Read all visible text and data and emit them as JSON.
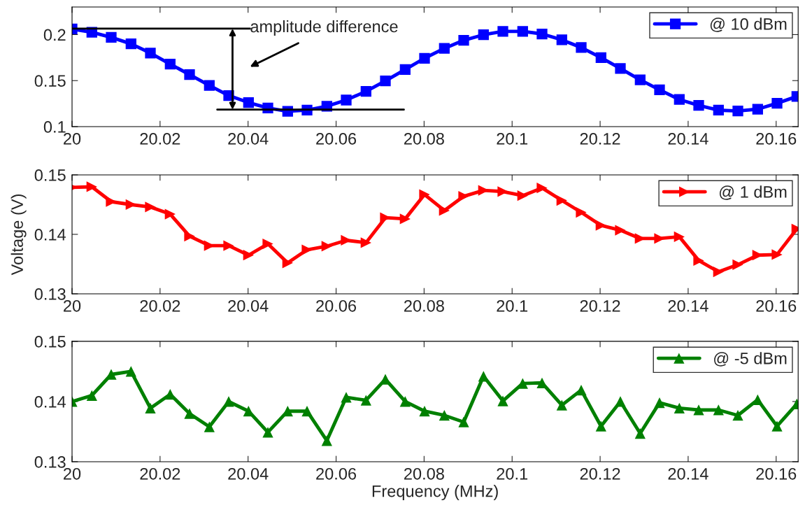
{
  "chart_data": [
    {
      "type": "line",
      "x": [
        20,
        20.0045,
        20.0089,
        20.0134,
        20.0178,
        20.0223,
        20.0267,
        20.0312,
        20.0356,
        20.0401,
        20.0445,
        20.049,
        20.0534,
        20.0579,
        20.0623,
        20.0668,
        20.0712,
        20.0757,
        20.0801,
        20.0846,
        20.089,
        20.0935,
        20.0979,
        20.1024,
        20.1068,
        20.1113,
        20.1157,
        20.1202,
        20.1246,
        20.1291,
        20.1335,
        20.138,
        20.1424,
        20.1469,
        20.1513,
        20.1558,
        20.1602,
        20.1647
      ],
      "series": [
        {
          "name": "@ 10 dBm",
          "color": "#0000ff",
          "marker": "square",
          "values": [
            0.2061,
            0.2025,
            0.197,
            0.19,
            0.18,
            0.168,
            0.1565,
            0.1447,
            0.1338,
            0.1262,
            0.1202,
            0.1167,
            0.118,
            0.1221,
            0.1289,
            0.1383,
            0.1497,
            0.162,
            0.1743,
            0.185,
            0.1938,
            0.1998,
            0.2035,
            0.2035,
            0.2007,
            0.1943,
            0.186,
            0.175,
            0.1632,
            0.1508,
            0.14,
            0.1295,
            0.1231,
            0.1179,
            0.117,
            0.119,
            0.1254,
            0.1328
          ]
        }
      ],
      "ref_lines": [
        {
          "axis": "y",
          "value": 0.2065,
          "label": "amplitude difference"
        },
        {
          "axis": "y",
          "value": 0.1185
        }
      ],
      "xlim": [
        20,
        20.165
      ],
      "xticks": [
        20,
        20.02,
        20.04,
        20.06,
        20.08,
        20.1,
        20.12,
        20.14,
        20.16
      ],
      "ylim": [
        0.1,
        0.23
      ],
      "yticks": [
        0.1,
        0.15,
        0.2
      ],
      "legend": "top right",
      "line_style": "solid",
      "grid": false
    },
    {
      "type": "line",
      "x": [
        20,
        20.0045,
        20.0089,
        20.0134,
        20.0178,
        20.0223,
        20.0267,
        20.0312,
        20.0356,
        20.0401,
        20.0445,
        20.049,
        20.0534,
        20.0579,
        20.0623,
        20.0668,
        20.0712,
        20.0757,
        20.0801,
        20.0846,
        20.089,
        20.0935,
        20.0979,
        20.1024,
        20.1068,
        20.1113,
        20.1157,
        20.1202,
        20.1246,
        20.1291,
        20.1335,
        20.138,
        20.1424,
        20.1469,
        20.1513,
        20.1558,
        20.1602,
        20.1647
      ],
      "series": [
        {
          "name": "@ 1 dBm",
          "color": "#ff0000",
          "marker": "triangle_right",
          "values": [
            0.1479,
            0.148,
            0.1455,
            0.145,
            0.1446,
            0.1434,
            0.1397,
            0.1381,
            0.1381,
            0.1365,
            0.1384,
            0.1352,
            0.1374,
            0.138,
            0.139,
            0.1386,
            0.1428,
            0.1426,
            0.1467,
            0.144,
            0.1464,
            0.1474,
            0.1472,
            0.1465,
            0.1478,
            0.1457,
            0.1437,
            0.1415,
            0.1407,
            0.1393,
            0.1393,
            0.1396,
            0.1356,
            0.1337,
            0.1349,
            0.1365,
            0.1366,
            0.1409
          ]
        }
      ],
      "ylabel": "Voltage (V)",
      "xlim": [
        20,
        20.165
      ],
      "xticks": [
        20,
        20.02,
        20.04,
        20.06,
        20.08,
        20.1,
        20.12,
        20.14,
        20.16
      ],
      "ylim": [
        0.13,
        0.15
      ],
      "yticks": [
        0.13,
        0.14,
        0.15
      ],
      "legend": "top right",
      "line_style": "solid",
      "grid": false
    },
    {
      "type": "line",
      "x": [
        20,
        20.0045,
        20.0089,
        20.0134,
        20.0178,
        20.0223,
        20.0267,
        20.0312,
        20.0356,
        20.0401,
        20.0445,
        20.049,
        20.0534,
        20.0579,
        20.0623,
        20.0668,
        20.0712,
        20.0757,
        20.0801,
        20.0846,
        20.089,
        20.0935,
        20.0979,
        20.1024,
        20.1068,
        20.1113,
        20.1157,
        20.1202,
        20.1246,
        20.1291,
        20.1335,
        20.138,
        20.1424,
        20.1469,
        20.1513,
        20.1558,
        20.1602,
        20.1647
      ],
      "series": [
        {
          "name": "@ -5 dBm",
          "color": "#008000",
          "marker": "triangle",
          "values": [
            0.14,
            0.141,
            0.1445,
            0.145,
            0.1389,
            0.1412,
            0.138,
            0.1358,
            0.14,
            0.1384,
            0.1349,
            0.1384,
            0.1384,
            0.1335,
            0.1407,
            0.1402,
            0.1437,
            0.14,
            0.1384,
            0.1377,
            0.1366,
            0.1442,
            0.1401,
            0.143,
            0.1431,
            0.1394,
            0.1419,
            0.1359,
            0.14,
            0.1347,
            0.1398,
            0.1389,
            0.1386,
            0.1386,
            0.1377,
            0.1403,
            0.1359,
            0.1396
          ]
        }
      ],
      "xlabel": "Frequency (MHz)",
      "xlim": [
        20,
        20.165
      ],
      "xticks": [
        20,
        20.02,
        20.04,
        20.06,
        20.08,
        20.1,
        20.12,
        20.14,
        20.16
      ],
      "ylim": [
        0.13,
        0.15
      ],
      "yticks": [
        0.13,
        0.14,
        0.15
      ],
      "legend": "top right",
      "line_style": "solid",
      "grid": false
    }
  ]
}
